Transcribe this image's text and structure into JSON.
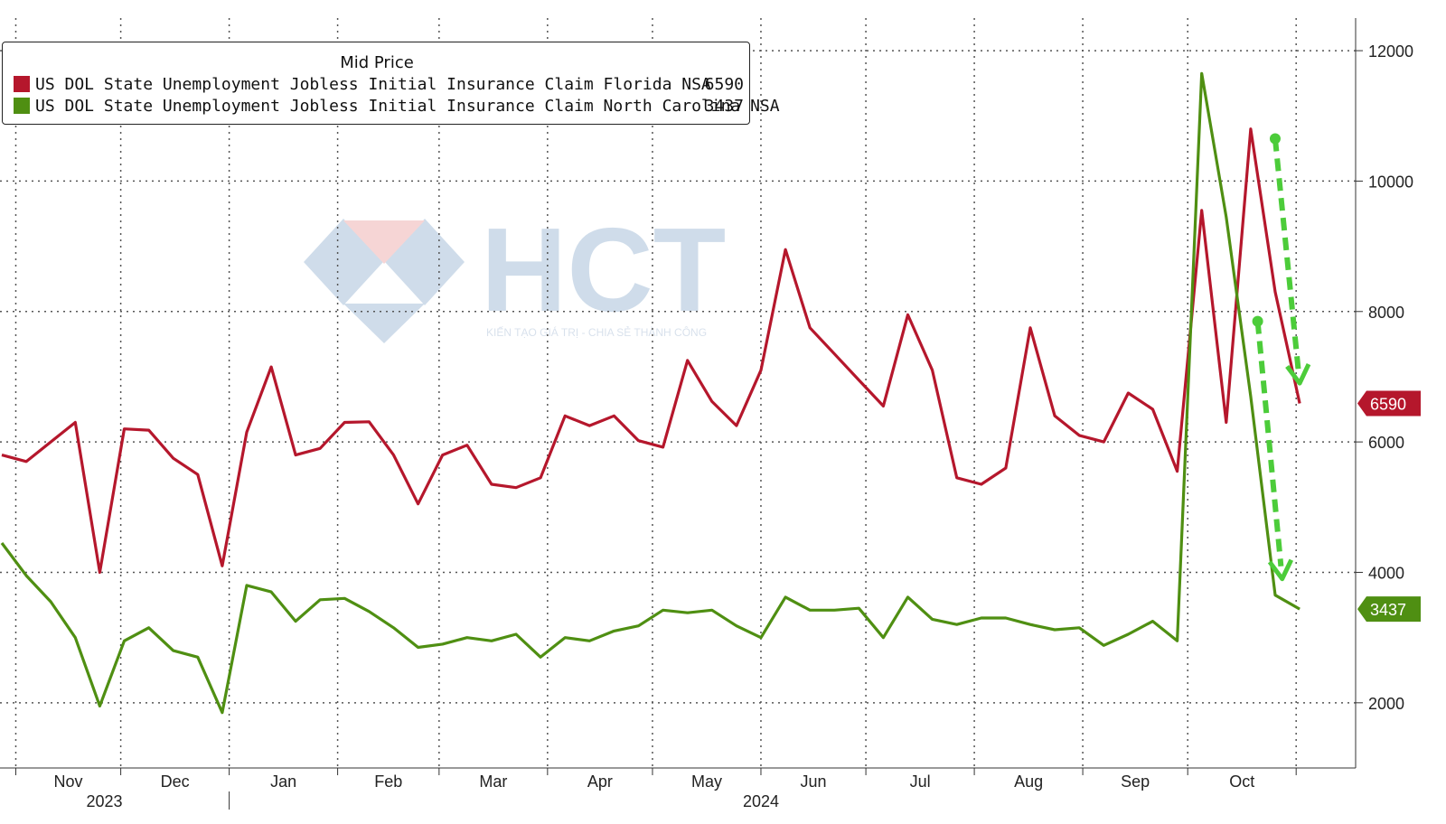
{
  "chart_data": {
    "type": "line",
    "ylim": [
      1000,
      12500
    ],
    "yticks": [
      2000,
      4000,
      6000,
      8000,
      10000,
      12000
    ],
    "legend": {
      "title": "Mid Price",
      "placement": "top-left"
    },
    "month_labels": [
      "Nov",
      "Dec",
      "Jan",
      "Feb",
      "Mar",
      "Apr",
      "May",
      "Jun",
      "Jul",
      "Aug",
      "Sep",
      "Oct"
    ],
    "year_labels": [
      "2023",
      "2024"
    ],
    "x": [
      "2023-10-28",
      "2023-11-04",
      "2023-11-11",
      "2023-11-18",
      "2023-11-25",
      "2023-12-02",
      "2023-12-09",
      "2023-12-16",
      "2023-12-23",
      "2023-12-30",
      "2024-01-06",
      "2024-01-13",
      "2024-01-20",
      "2024-01-27",
      "2024-02-03",
      "2024-02-10",
      "2024-02-17",
      "2024-02-24",
      "2024-03-02",
      "2024-03-09",
      "2024-03-16",
      "2024-03-23",
      "2024-03-30",
      "2024-04-06",
      "2024-04-13",
      "2024-04-20",
      "2024-04-27",
      "2024-05-04",
      "2024-05-11",
      "2024-05-18",
      "2024-05-25",
      "2024-06-01",
      "2024-06-08",
      "2024-06-15",
      "2024-06-22",
      "2024-06-29",
      "2024-07-06",
      "2024-07-13",
      "2024-07-20",
      "2024-07-27",
      "2024-08-03",
      "2024-08-10",
      "2024-08-17",
      "2024-08-24",
      "2024-08-31",
      "2024-09-07",
      "2024-09-14",
      "2024-09-21",
      "2024-09-28",
      "2024-10-05",
      "2024-10-12",
      "2024-10-19",
      "2024-10-26",
      "2024-11-02"
    ],
    "series": [
      {
        "name": "US DOL State Unemployment Jobless Initial Insurance Claim Florida NSA",
        "color": "#b5172c",
        "last_label": "6590",
        "values": [
          5800,
          5700,
          6000,
          6300,
          4000,
          6200,
          6180,
          5750,
          5500,
          4100,
          6150,
          7150,
          5800,
          5900,
          6300,
          6310,
          5800,
          5050,
          5800,
          5950,
          5350,
          5300,
          5450,
          6400,
          6250,
          6400,
          6020,
          5920,
          7250,
          6620,
          6250,
          7100,
          8950,
          7750,
          7350,
          6950,
          6550,
          7950,
          7100,
          5450,
          5350,
          5600,
          7750,
          6400,
          6100,
          6000,
          6750,
          6500,
          5550,
          9550,
          6300,
          10800,
          8300,
          6590
        ]
      },
      {
        "name": "US DOL State Unemployment Jobless Initial Insurance Claim North Carolina NSA",
        "color": "#4f8f12",
        "last_label": "3437",
        "values": [
          4450,
          3950,
          3550,
          3000,
          1950,
          2950,
          3150,
          2800,
          2700,
          1850,
          3800,
          3700,
          3250,
          3580,
          3600,
          3400,
          3150,
          2850,
          2900,
          3000,
          2950,
          3050,
          2700,
          3000,
          2950,
          3100,
          3180,
          3420,
          3380,
          3420,
          3180,
          3000,
          3620,
          3420,
          3420,
          3450,
          3000,
          3620,
          3280,
          3200,
          3300,
          3300,
          3200,
          3120,
          3150,
          2880,
          3050,
          3250,
          2950,
          11650,
          9450,
          6700,
          3650,
          3437
        ]
      }
    ],
    "annotations": [
      {
        "type": "dashed-arrow",
        "color": "#4ccc3a",
        "x": [
          "2024-10-26",
          "2024-11-02"
        ],
        "y": [
          10650,
          6900
        ]
      },
      {
        "type": "dashed-arrow",
        "color": "#4ccc3a",
        "x": [
          "2024-10-21",
          "2024-10-28"
        ],
        "y": [
          7850,
          3900
        ]
      }
    ],
    "grid": true
  },
  "watermark": {
    "text": "HCT",
    "tagline": "KIẾN TẠO GIÁ TRỊ - CHIA SẺ THÀNH CÔNG"
  }
}
